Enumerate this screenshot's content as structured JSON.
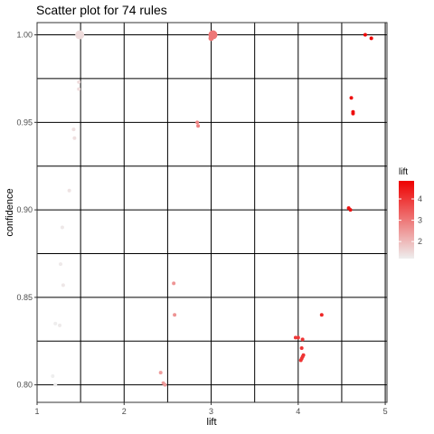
{
  "chart_data": {
    "type": "scatter",
    "title": "Scatter plot for 74 rules",
    "xlabel": "lift",
    "ylabel": "confidence",
    "xlim": [
      1.0,
      5.02
    ],
    "ylim": [
      0.79,
      1.007
    ],
    "x_ticks": [
      1,
      2,
      3,
      4,
      5
    ],
    "y_ticks": [
      0.8,
      0.85,
      0.9,
      0.95,
      1.0
    ],
    "x_tick_labels": [
      "1",
      "2",
      "3",
      "4",
      "5"
    ],
    "y_tick_labels": [
      "0.80",
      "0.85",
      "0.90",
      "0.95",
      "1.00"
    ],
    "grid": true,
    "legend": {
      "title": "lift",
      "position": "right",
      "ticks": [
        2,
        3,
        4
      ],
      "tick_labels": [
        "2",
        "3",
        "4"
      ],
      "range": [
        1.2,
        4.85
      ],
      "color_low": "#eeeeee",
      "color_high": "#ee0000"
    },
    "points": [
      {
        "x": 1.49,
        "y": 1.0,
        "lift": 1.49,
        "size": 5
      },
      {
        "x": 3.02,
        "y": 1.0,
        "lift": 3.02,
        "size": 5
      },
      {
        "x": 3.0,
        "y": 0.998,
        "lift": 3.0,
        "size": 3
      },
      {
        "x": 4.77,
        "y": 1.0,
        "lift": 4.77,
        "size": 2
      },
      {
        "x": 4.84,
        "y": 0.998,
        "lift": 4.84,
        "size": 2
      },
      {
        "x": 1.48,
        "y": 0.973,
        "lift": 1.48,
        "size": 2
      },
      {
        "x": 1.48,
        "y": 0.969,
        "lift": 1.48,
        "size": 2
      },
      {
        "x": 4.61,
        "y": 0.964,
        "lift": 4.61,
        "size": 2
      },
      {
        "x": 4.63,
        "y": 0.956,
        "lift": 4.63,
        "size": 2
      },
      {
        "x": 4.63,
        "y": 0.955,
        "lift": 4.63,
        "size": 2
      },
      {
        "x": 2.84,
        "y": 0.95,
        "lift": 2.84,
        "size": 2
      },
      {
        "x": 2.85,
        "y": 0.948,
        "lift": 2.85,
        "size": 2
      },
      {
        "x": 1.42,
        "y": 0.946,
        "lift": 1.42,
        "size": 2
      },
      {
        "x": 1.43,
        "y": 0.941,
        "lift": 1.43,
        "size": 2
      },
      {
        "x": 1.37,
        "y": 0.911,
        "lift": 1.37,
        "size": 2
      },
      {
        "x": 4.58,
        "y": 0.901,
        "lift": 4.58,
        "size": 2
      },
      {
        "x": 4.6,
        "y": 0.9,
        "lift": 4.6,
        "size": 2
      },
      {
        "x": 1.29,
        "y": 0.89,
        "lift": 1.29,
        "size": 2
      },
      {
        "x": 1.27,
        "y": 0.869,
        "lift": 1.27,
        "size": 2
      },
      {
        "x": 1.3,
        "y": 0.857,
        "lift": 1.3,
        "size": 2
      },
      {
        "x": 2.57,
        "y": 0.858,
        "lift": 2.57,
        "size": 2
      },
      {
        "x": 2.58,
        "y": 0.84,
        "lift": 2.58,
        "size": 2
      },
      {
        "x": 4.27,
        "y": 0.84,
        "lift": 4.27,
        "size": 2
      },
      {
        "x": 1.21,
        "y": 0.835,
        "lift": 1.21,
        "size": 2
      },
      {
        "x": 1.26,
        "y": 0.834,
        "lift": 1.26,
        "size": 2
      },
      {
        "x": 3.97,
        "y": 0.827,
        "lift": 3.97,
        "size": 2
      },
      {
        "x": 4.0,
        "y": 0.827,
        "lift": 4.0,
        "size": 2
      },
      {
        "x": 4.05,
        "y": 0.826,
        "lift": 4.05,
        "size": 2
      },
      {
        "x": 4.04,
        "y": 0.821,
        "lift": 4.04,
        "size": 2
      },
      {
        "x": 4.06,
        "y": 0.817,
        "lift": 4.06,
        "size": 2
      },
      {
        "x": 4.05,
        "y": 0.816,
        "lift": 4.05,
        "size": 2
      },
      {
        "x": 4.04,
        "y": 0.815,
        "lift": 4.04,
        "size": 2
      },
      {
        "x": 4.03,
        "y": 0.814,
        "lift": 4.03,
        "size": 2
      },
      {
        "x": 2.42,
        "y": 0.807,
        "lift": 2.42,
        "size": 2
      },
      {
        "x": 1.18,
        "y": 0.805,
        "lift": 1.18,
        "size": 2
      },
      {
        "x": 2.45,
        "y": 0.801,
        "lift": 2.45,
        "size": 2
      },
      {
        "x": 2.47,
        "y": 0.8,
        "lift": 2.47,
        "size": 2
      },
      {
        "x": 1.21,
        "y": 0.8,
        "lift": 1.21,
        "size": 2
      }
    ]
  }
}
